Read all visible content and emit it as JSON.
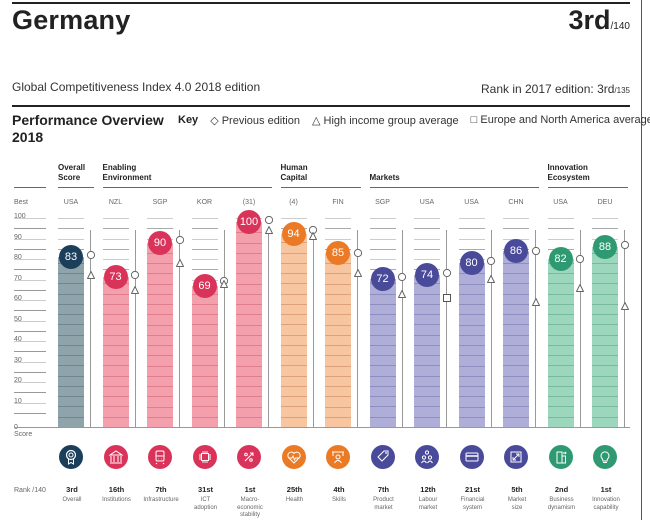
{
  "header": {
    "country": "Germany",
    "rank": "3rd",
    "rank_of": "/140",
    "edition": "Global Competitiveness Index 4.0 2018 edition",
    "prev_rank_label": "Rank in 2017 edition: 3rd",
    "prev_rank_of": "/135"
  },
  "overview": {
    "title_line1": "Performance Overview",
    "title_line2": "2018",
    "key_label": "Key",
    "key_items": [
      {
        "symbol": "◇",
        "label": "Previous edition"
      },
      {
        "symbol": "△",
        "label": "High income group average"
      },
      {
        "symbol": "□",
        "label": "Europe and North America average"
      }
    ],
    "best_label": "Best",
    "score_label": "Score",
    "rank_label": "Rank /140"
  },
  "groups": [
    {
      "name_line1": "Overall",
      "name_line2": "Score",
      "from": 0,
      "to": 0
    },
    {
      "name_line1": "Enabling",
      "name_line2": "Environment",
      "from": 1,
      "to": 4
    },
    {
      "name_line1": "Human",
      "name_line2": "Capital",
      "from": 5,
      "to": 6
    },
    {
      "name_line1": "",
      "name_line2": "Markets",
      "from": 7,
      "to": 10
    },
    {
      "name_line1": "Innovation",
      "name_line2": "Ecosystem",
      "from": 11,
      "to": 12
    }
  ],
  "colors": {
    "overall": {
      "solid": "#1b3f5a",
      "fill": "#8fa4aa",
      "stripe": "#6f878e"
    },
    "enabling": {
      "solid": "#d9335a",
      "fill": "#f3a0ac",
      "stripe": "#df7f8e"
    },
    "human": {
      "solid": "#ea7a25",
      "fill": "#f7c6a1",
      "stripe": "#dda27b"
    },
    "markets": {
      "solid": "#4a4a9a",
      "fill": "#aeaed8",
      "stripe": "#8d8dc0"
    },
    "innovation": {
      "solid": "#2f9a72",
      "fill": "#9cd6bc",
      "stripe": "#77bb9c"
    }
  },
  "chart_data": {
    "type": "bar",
    "title": "Performance Overview 2018",
    "ylabel": "Score",
    "ylim": [
      0,
      100
    ],
    "yticks": [
      0,
      10,
      20,
      30,
      40,
      50,
      60,
      70,
      80,
      90,
      100
    ],
    "categories": [
      "Overall",
      "Institutions",
      "Infrastructure",
      "ICT adoption",
      "Macro-economic stability",
      "Health",
      "Skills",
      "Product market",
      "Labour market",
      "Financial system",
      "Market size",
      "Business dynamism",
      "Innovation capability"
    ],
    "series": [
      {
        "name": "Score 2018",
        "values": [
          83,
          73,
          90,
          69,
          100,
          94,
          85,
          72,
          74,
          80,
          86,
          82,
          88
        ]
      },
      {
        "name": "Previous edition",
        "values": [
          84,
          74,
          91,
          71,
          101,
          96,
          85,
          73,
          75,
          81,
          86,
          82,
          89
        ]
      },
      {
        "name": "High income group average",
        "values": [
          74,
          67,
          80,
          70,
          96,
          93,
          75,
          65,
          null,
          72,
          61,
          68,
          59
        ]
      },
      {
        "name": "Europe and North America average",
        "values": [
          null,
          null,
          null,
          null,
          null,
          null,
          null,
          null,
          63,
          null,
          null,
          null,
          null
        ]
      }
    ],
    "pillars": [
      {
        "group": "overall",
        "best": "USA",
        "rank": "3rd",
        "name": "Overall",
        "icon": "award-icon"
      },
      {
        "group": "enabling",
        "best": "NZL",
        "rank": "16th",
        "name": "Institutions",
        "icon": "institution-icon"
      },
      {
        "group": "enabling",
        "best": "SGP",
        "rank": "7th",
        "name": "Infrastructure",
        "icon": "train-icon"
      },
      {
        "group": "enabling",
        "best": "KOR",
        "rank": "31st",
        "name": "ICT adoption",
        "icon": "chip-icon"
      },
      {
        "group": "enabling",
        "best": "(31)",
        "rank": "1st",
        "name": "Macro-economic stability",
        "icon": "percent-icon"
      },
      {
        "group": "human",
        "best": "(4)",
        "rank": "25th",
        "name": "Health",
        "icon": "heart-icon"
      },
      {
        "group": "human",
        "best": "FIN",
        "rank": "4th",
        "name": "Skills",
        "icon": "teacher-icon"
      },
      {
        "group": "markets",
        "best": "SGP",
        "rank": "7th",
        "name": "Product market",
        "icon": "tag-icon"
      },
      {
        "group": "markets",
        "best": "USA",
        "rank": "12th",
        "name": "Labour market",
        "icon": "people-icon"
      },
      {
        "group": "markets",
        "best": "USA",
        "rank": "21st",
        "name": "Financial system",
        "icon": "card-icon"
      },
      {
        "group": "markets",
        "best": "CHN",
        "rank": "5th",
        "name": "Market size",
        "icon": "expand-icon"
      },
      {
        "group": "innovation",
        "best": "USA",
        "rank": "2nd",
        "name": "Business dynamism",
        "icon": "business-icon"
      },
      {
        "group": "innovation",
        "best": "DEU",
        "rank": "1st",
        "name": "Innovation capability",
        "icon": "bulb-icon"
      }
    ],
    "pillar_name_lines": [
      [
        "Overall"
      ],
      [
        "Institutions"
      ],
      [
        "Infrastructure"
      ],
      [
        "ICT",
        "adoption"
      ],
      [
        "Macro-",
        "economic",
        "stability"
      ],
      [
        "Health"
      ],
      [
        "Skills"
      ],
      [
        "Product",
        "market"
      ],
      [
        "Labour",
        "market"
      ],
      [
        "Financial",
        "system"
      ],
      [
        "Market",
        "size"
      ],
      [
        "Business",
        "dynamism"
      ],
      [
        "Innovation",
        "capability"
      ]
    ],
    "legend": "top-right"
  }
}
